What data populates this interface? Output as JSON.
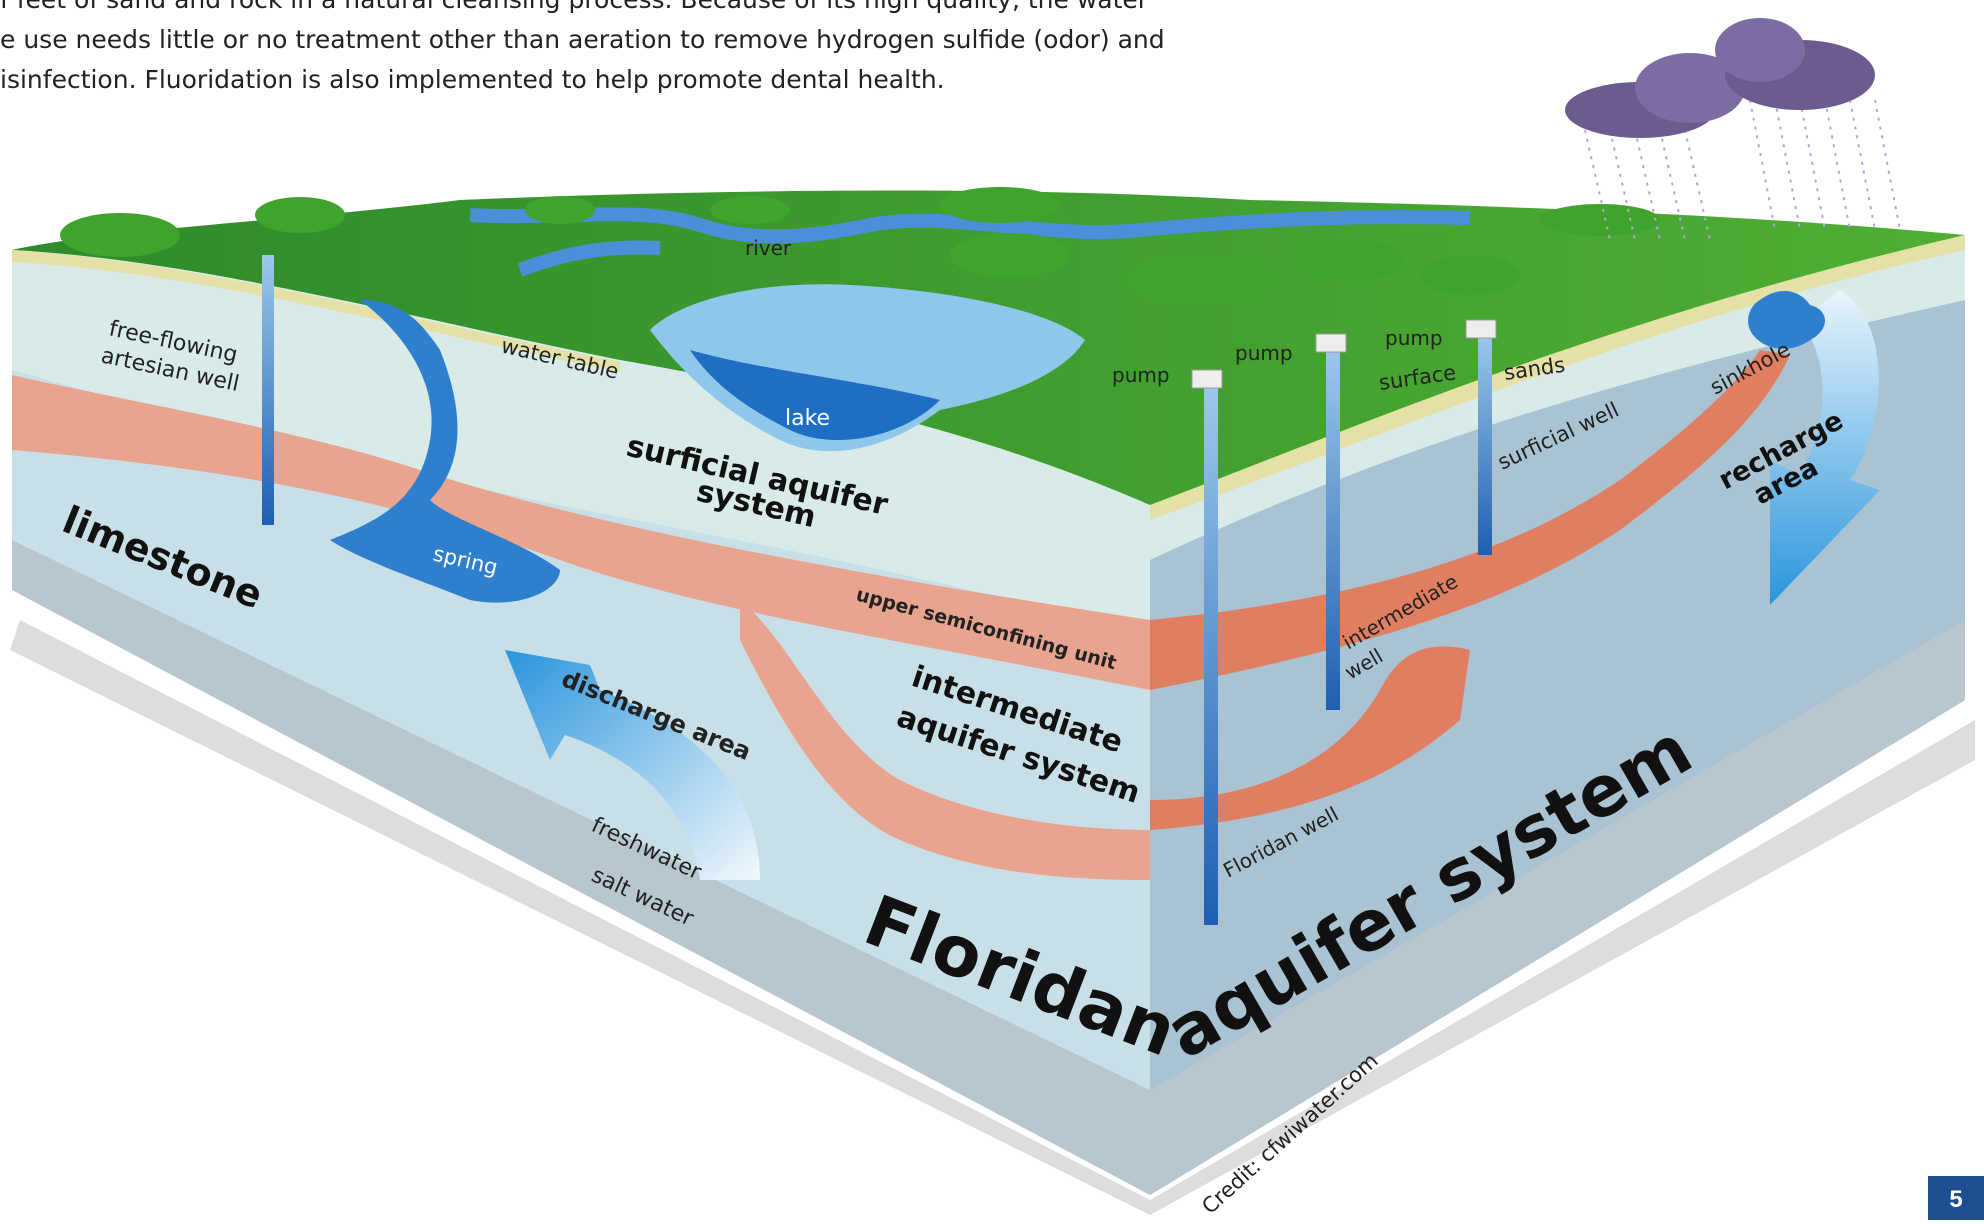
{
  "intro": {
    "line1": "f feet of sand and rock in a natural cleansing process. Because of its high quality, the water",
    "line2": "e use needs little or no treatment other than aeration to remove hydrogen sulfide (odor) and",
    "line3": "isinfection. Fluoridation is also implemented to help promote dental health."
  },
  "diagram": {
    "labels": {
      "free_flowing_1": "free-flowing",
      "free_flowing_2": "artesian well",
      "water_table": "water table",
      "river": "river",
      "lake": "lake",
      "surficial_1": "surficial aquifer",
      "surficial_2": "system",
      "spring": "spring",
      "limestone": "limestone",
      "upper_semi": "upper semiconfining unit",
      "intermediate_1": "intermediate",
      "intermediate_2": "aquifer system",
      "discharge": "discharge area",
      "freshwater": "freshwater",
      "salt_water": "salt water",
      "floridan": "Floridan",
      "aquifer_system": "aquifer system",
      "pump_1": "pump",
      "pump_2": "pump",
      "pump_3": "pump",
      "surface": "surface",
      "sands": "sands",
      "surficial_well": "surficial well",
      "intermediate_well_1": "intermediate",
      "intermediate_well_2": "well",
      "floridan_well": "Floridan well",
      "sinkhole": "sinkhole",
      "recharge_1": "recharge",
      "recharge_2": "area"
    },
    "credit": "Credit: cfwiwater.com"
  },
  "page_number": "5",
  "colors": {
    "grass": "#3d9a2e",
    "water": "#2f7fcf",
    "confining": "#e8a48e",
    "limestone": "#c6dde6",
    "page_badge": "#1d4f91"
  }
}
